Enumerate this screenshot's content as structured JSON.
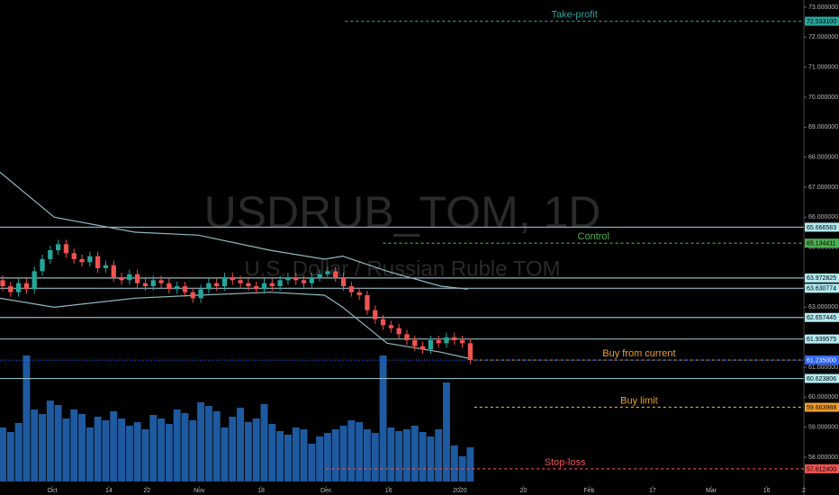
{
  "chart_data": {
    "type": "candlestick",
    "watermark": "USDRUB_TOM, 1D",
    "watermark_subtitle": "U.S. Dollar / Russian Ruble TOM",
    "up_color": "#26a69a",
    "down_color": "#ef5350",
    "volume_color": "#1e5aa0",
    "band_color": "#8fb8c0",
    "xlim": [
      -0.34,
      101.1
    ],
    "xticks": [
      {
        "value": 6.25,
        "label": "Oct"
      },
      {
        "value": 13.4,
        "label": "14"
      },
      {
        "value": 18.2,
        "label": "22"
      },
      {
        "value": 24.8,
        "label": "Nov"
      },
      {
        "value": 32.6,
        "label": "18"
      },
      {
        "value": 40.8,
        "label": "Dec"
      },
      {
        "value": 48.7,
        "label": "16"
      },
      {
        "value": 57.7,
        "label": "2020"
      },
      {
        "value": 65.7,
        "label": "20"
      },
      {
        "value": 74,
        "label": "Feb"
      },
      {
        "value": 82,
        "label": "17"
      },
      {
        "value": 89.4,
        "label": "Mar"
      },
      {
        "value": 96.4,
        "label": "16"
      },
      {
        "value": 101.1,
        "label": "2"
      }
    ],
    "ylim": [
      56.74,
      73.24
    ],
    "yticks": [
      {
        "value": 58,
        "label": "58.000000"
      },
      {
        "value": 59,
        "label": "59.000000"
      },
      {
        "value": 60,
        "label": "60.000000"
      },
      {
        "value": 61,
        "label": "61.000000"
      },
      {
        "value": 62,
        "label": "62.000000"
      },
      {
        "value": 63,
        "label": "63.000000"
      },
      {
        "value": 64,
        "label": "64.000000"
      },
      {
        "value": 65,
        "label": "65.000000"
      },
      {
        "value": 66,
        "label": "66.000000"
      },
      {
        "value": 67,
        "label": "67.000000"
      },
      {
        "value": 68,
        "label": "68.000000"
      },
      {
        "value": 69,
        "label": "69.000000"
      },
      {
        "value": 70,
        "label": "70.000000"
      },
      {
        "value": 71,
        "label": "71.000000"
      },
      {
        "value": 72,
        "label": "72.000000"
      },
      {
        "value": 73,
        "label": "73.000000"
      }
    ],
    "open": [
      63.9,
      63.7,
      63.5,
      63.8,
      63.6,
      64.2,
      64.6,
      64.9,
      65.1,
      64.8,
      64.6,
      64.5,
      64.7,
      64.3,
      64.4,
      64.0,
      63.9,
      64.1,
      63.8,
      63.7,
      63.9,
      63.8,
      63.6,
      63.7,
      63.5,
      63.3,
      63.6,
      63.8,
      63.7,
      64.0,
      63.9,
      63.8,
      63.7,
      63.6,
      63.8,
      63.7,
      63.9,
      64.0,
      63.9,
      63.8,
      64.0,
      64.1,
      64.2,
      64.0,
      63.7,
      63.5,
      63.4,
      62.9,
      62.6,
      62.4,
      62.3,
      62.1,
      61.9,
      61.7,
      61.6,
      61.9,
      61.8,
      62.0,
      61.9,
      61.8
    ],
    "close": [
      63.7,
      63.5,
      63.8,
      63.6,
      64.2,
      64.6,
      64.9,
      65.1,
      64.8,
      64.6,
      64.5,
      64.7,
      64.3,
      64.4,
      64.0,
      63.9,
      64.1,
      63.8,
      63.7,
      63.9,
      63.8,
      63.6,
      63.7,
      63.5,
      63.3,
      63.6,
      63.8,
      63.7,
      64.0,
      63.9,
      63.8,
      63.7,
      63.6,
      63.8,
      63.7,
      63.9,
      64.0,
      63.9,
      63.8,
      64.0,
      64.1,
      64.2,
      64.0,
      63.7,
      63.5,
      63.4,
      62.9,
      62.6,
      62.4,
      62.3,
      62.1,
      61.9,
      61.7,
      61.6,
      61.9,
      61.8,
      62.0,
      61.9,
      61.8,
      61.24
    ],
    "high": [
      64.05,
      63.85,
      63.95,
      63.95,
      64.35,
      64.75,
      65.05,
      65.25,
      65.25,
      64.95,
      64.75,
      64.85,
      64.85,
      64.55,
      64.55,
      64.15,
      64.25,
      64.25,
      63.95,
      64.05,
      64.05,
      63.95,
      63.85,
      63.85,
      63.65,
      63.75,
      63.95,
      63.95,
      64.15,
      64.15,
      64.05,
      63.95,
      63.85,
      63.95,
      63.95,
      64.05,
      64.15,
      64.15,
      64.05,
      64.15,
      64.25,
      64.35,
      64.35,
      64.15,
      63.85,
      63.65,
      63.55,
      63.05,
      62.75,
      62.55,
      62.45,
      62.25,
      62.05,
      61.85,
      62.05,
      62.05,
      62.15,
      62.15,
      62.05,
      61.95
    ],
    "low": [
      63.55,
      63.35,
      63.35,
      63.45,
      63.45,
      64.05,
      64.45,
      64.75,
      64.65,
      64.45,
      64.35,
      64.35,
      64.15,
      64.15,
      63.85,
      63.75,
      63.75,
      63.65,
      63.55,
      63.55,
      63.65,
      63.45,
      63.45,
      63.35,
      63.15,
      63.15,
      63.45,
      63.55,
      63.55,
      63.75,
      63.65,
      63.55,
      63.45,
      63.45,
      63.55,
      63.55,
      63.75,
      63.75,
      63.65,
      63.65,
      63.85,
      63.95,
      63.85,
      63.55,
      63.35,
      63.25,
      62.75,
      62.45,
      62.25,
      62.15,
      61.95,
      61.75,
      61.55,
      61.45,
      61.45,
      61.65,
      61.65,
      61.75,
      61.65,
      61.1
    ],
    "volume": [
      60,
      55,
      65,
      140,
      80,
      75,
      90,
      85,
      70,
      80,
      75,
      60,
      72,
      68,
      78,
      70,
      62,
      66,
      58,
      74,
      70,
      64,
      80,
      76,
      68,
      88,
      84,
      78,
      60,
      72,
      82,
      66,
      70,
      86,
      64,
      56,
      52,
      60,
      58,
      42,
      50,
      54,
      58,
      62,
      68,
      66,
      58,
      54,
      140,
      60,
      56,
      58,
      62,
      55,
      50,
      58,
      110,
      40,
      28,
      38
    ],
    "volume_ylim": [
      0,
      150
    ],
    "band_x": [
      -0.34,
      6.5,
      16.7,
      24.7,
      33.7,
      40.6,
      42.9,
      48.5,
      55.3,
      58.7
    ],
    "upper_band": [
      67.5,
      66.0,
      65.5,
      65.4,
      64.9,
      64.6,
      64.7,
      64.2,
      63.7,
      63.6
    ],
    "lower_band": [
      63.3,
      63.0,
      63.3,
      63.4,
      63.5,
      63.4,
      63.0,
      61.8,
      61.5,
      61.3
    ],
    "levels": [
      {
        "label": "Take-profit",
        "price": 72.5331,
        "price_label": "72.533100",
        "color": "#26a69a",
        "from": 43.2
      },
      {
        "price": 65.666583,
        "price_label": "65.666583",
        "color": "#b2ebf2",
        "line_color": "#8fb8c0"
      },
      {
        "label": "Control",
        "price": 65.134411,
        "price_label": "65.134411",
        "color": "#4caf50",
        "from": 48
      },
      {
        "price": 63.972825,
        "price_label": "63.972825",
        "color": "#b2ebf2",
        "line_color": "#8fb8c0"
      },
      {
        "price": 63.630774,
        "price_label": "63.630774",
        "color": "#b2ebf2",
        "line_color": "#8fb8c0"
      },
      {
        "price": 62.657445,
        "price_label": "62.657445",
        "color": "#b2ebf2",
        "line_color": "#8fb8c0"
      },
      {
        "price": 61.939575,
        "price_label": "61.939575",
        "color": "#b2ebf2",
        "line_color": "#8fb8c0"
      },
      {
        "label": "Buy from current",
        "price": 61.238648,
        "price_label": "61.238648",
        "color": "#f0a030",
        "from": 59.5
      },
      {
        "price": 61.235,
        "price_label": "61.235000",
        "color": "#2962ff",
        "line_color": "#2962ff",
        "dotted": true
      },
      {
        "price": 60.623806,
        "price_label": "60.623806",
        "color": "#b2ebf2",
        "line_color": "#8fb8c0"
      },
      {
        "label": "Buy limit",
        "price": 59.663988,
        "price_label": "59.663988",
        "color": "#f0a030",
        "from": 59.5
      },
      {
        "label": "Stop-loss",
        "price": 57.6124,
        "price_label": "57.612400",
        "color": "#ef5350",
        "from": 40.8
      }
    ]
  }
}
